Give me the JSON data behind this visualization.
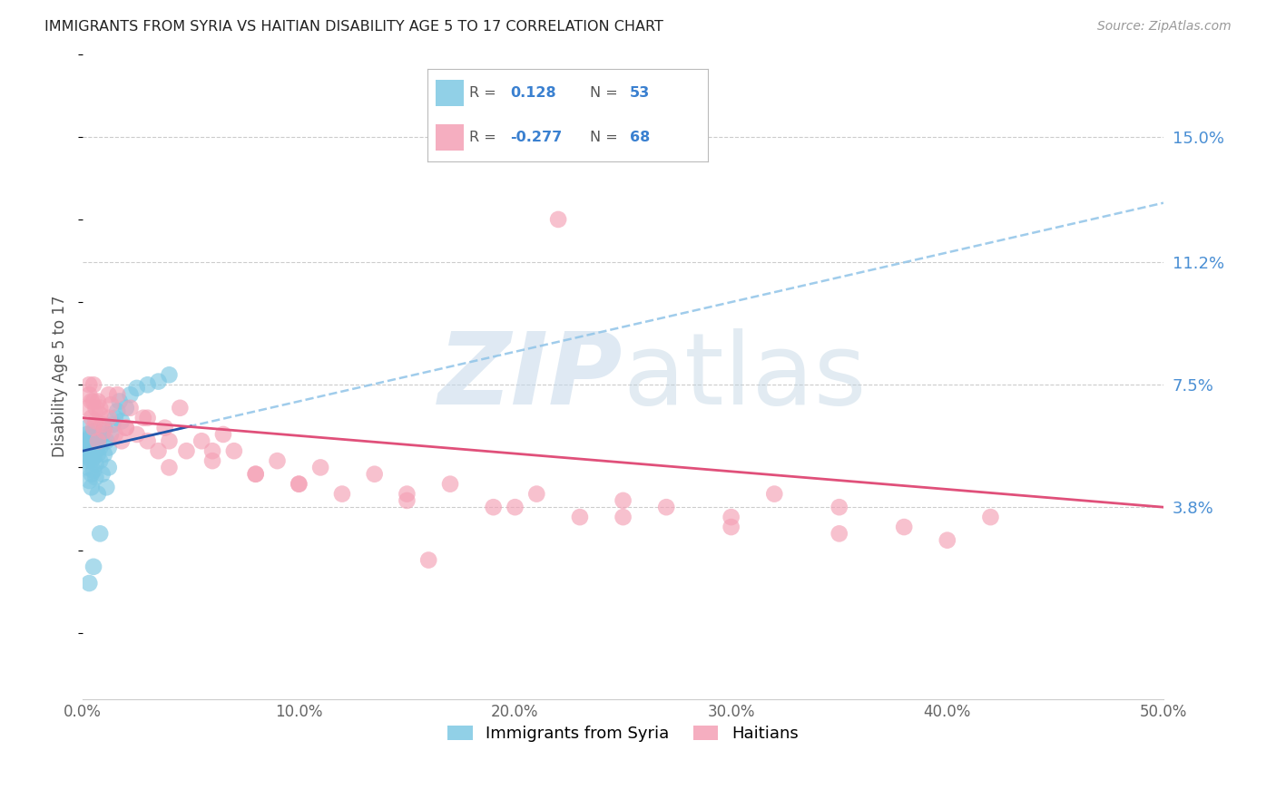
{
  "title": "IMMIGRANTS FROM SYRIA VS HAITIAN DISABILITY AGE 5 TO 17 CORRELATION CHART",
  "source": "Source: ZipAtlas.com",
  "xlabel_ticks": [
    "0.0%",
    "10.0%",
    "20.0%",
    "30.0%",
    "40.0%",
    "50.0%"
  ],
  "xlabel_vals": [
    0.0,
    0.1,
    0.2,
    0.3,
    0.4,
    0.5
  ],
  "ylabel": "Disability Age 5 to 17",
  "ylabel_ticks": [
    "3.8%",
    "7.5%",
    "11.2%",
    "15.0%"
  ],
  "ylabel_vals": [
    0.038,
    0.075,
    0.112,
    0.15
  ],
  "xlim": [
    0.0,
    0.5
  ],
  "ylim": [
    -0.02,
    0.175
  ],
  "color_blue": "#7ec8e3",
  "color_pink": "#f4a0b5",
  "color_blue_line": "#2255aa",
  "color_pink_line": "#e0507a",
  "color_blue_dashed": "#90c4e8",
  "watermark_color": "#c8d8e8",
  "syria_x": [
    0.001,
    0.001,
    0.001,
    0.002,
    0.002,
    0.002,
    0.002,
    0.002,
    0.003,
    0.003,
    0.003,
    0.003,
    0.003,
    0.004,
    0.004,
    0.004,
    0.004,
    0.005,
    0.005,
    0.005,
    0.005,
    0.006,
    0.006,
    0.006,
    0.006,
    0.007,
    0.007,
    0.007,
    0.008,
    0.008,
    0.009,
    0.009,
    0.01,
    0.01,
    0.011,
    0.011,
    0.012,
    0.012,
    0.013,
    0.014,
    0.015,
    0.016,
    0.017,
    0.018,
    0.02,
    0.022,
    0.025,
    0.03,
    0.035,
    0.04,
    0.003,
    0.005,
    0.008
  ],
  "syria_y": [
    0.056,
    0.058,
    0.052,
    0.06,
    0.054,
    0.062,
    0.05,
    0.058,
    0.055,
    0.059,
    0.053,
    0.057,
    0.046,
    0.052,
    0.056,
    0.048,
    0.044,
    0.057,
    0.053,
    0.049,
    0.061,
    0.055,
    0.059,
    0.051,
    0.047,
    0.054,
    0.058,
    0.042,
    0.056,
    0.052,
    0.06,
    0.048,
    0.054,
    0.062,
    0.058,
    0.044,
    0.056,
    0.05,
    0.06,
    0.063,
    0.065,
    0.067,
    0.07,
    0.064,
    0.068,
    0.072,
    0.074,
    0.075,
    0.076,
    0.078,
    0.015,
    0.02,
    0.03
  ],
  "haiti_x": [
    0.002,
    0.003,
    0.004,
    0.004,
    0.005,
    0.005,
    0.006,
    0.006,
    0.007,
    0.007,
    0.008,
    0.009,
    0.01,
    0.012,
    0.013,
    0.015,
    0.016,
    0.018,
    0.02,
    0.022,
    0.025,
    0.028,
    0.03,
    0.035,
    0.038,
    0.04,
    0.045,
    0.048,
    0.055,
    0.06,
    0.065,
    0.07,
    0.08,
    0.09,
    0.1,
    0.11,
    0.12,
    0.135,
    0.15,
    0.17,
    0.19,
    0.21,
    0.23,
    0.25,
    0.27,
    0.3,
    0.32,
    0.35,
    0.38,
    0.42,
    0.003,
    0.005,
    0.008,
    0.012,
    0.02,
    0.03,
    0.04,
    0.06,
    0.08,
    0.1,
    0.15,
    0.2,
    0.25,
    0.3,
    0.35,
    0.4,
    0.22,
    0.16
  ],
  "haiti_y": [
    0.068,
    0.072,
    0.065,
    0.07,
    0.062,
    0.075,
    0.068,
    0.064,
    0.07,
    0.058,
    0.066,
    0.063,
    0.061,
    0.065,
    0.069,
    0.06,
    0.072,
    0.058,
    0.062,
    0.068,
    0.06,
    0.065,
    0.058,
    0.055,
    0.062,
    0.05,
    0.068,
    0.055,
    0.058,
    0.052,
    0.06,
    0.055,
    0.048,
    0.052,
    0.045,
    0.05,
    0.042,
    0.048,
    0.04,
    0.045,
    0.038,
    0.042,
    0.035,
    0.04,
    0.038,
    0.035,
    0.042,
    0.038,
    0.032,
    0.035,
    0.075,
    0.07,
    0.068,
    0.072,
    0.062,
    0.065,
    0.058,
    0.055,
    0.048,
    0.045,
    0.042,
    0.038,
    0.035,
    0.032,
    0.03,
    0.028,
    0.125,
    0.022
  ]
}
